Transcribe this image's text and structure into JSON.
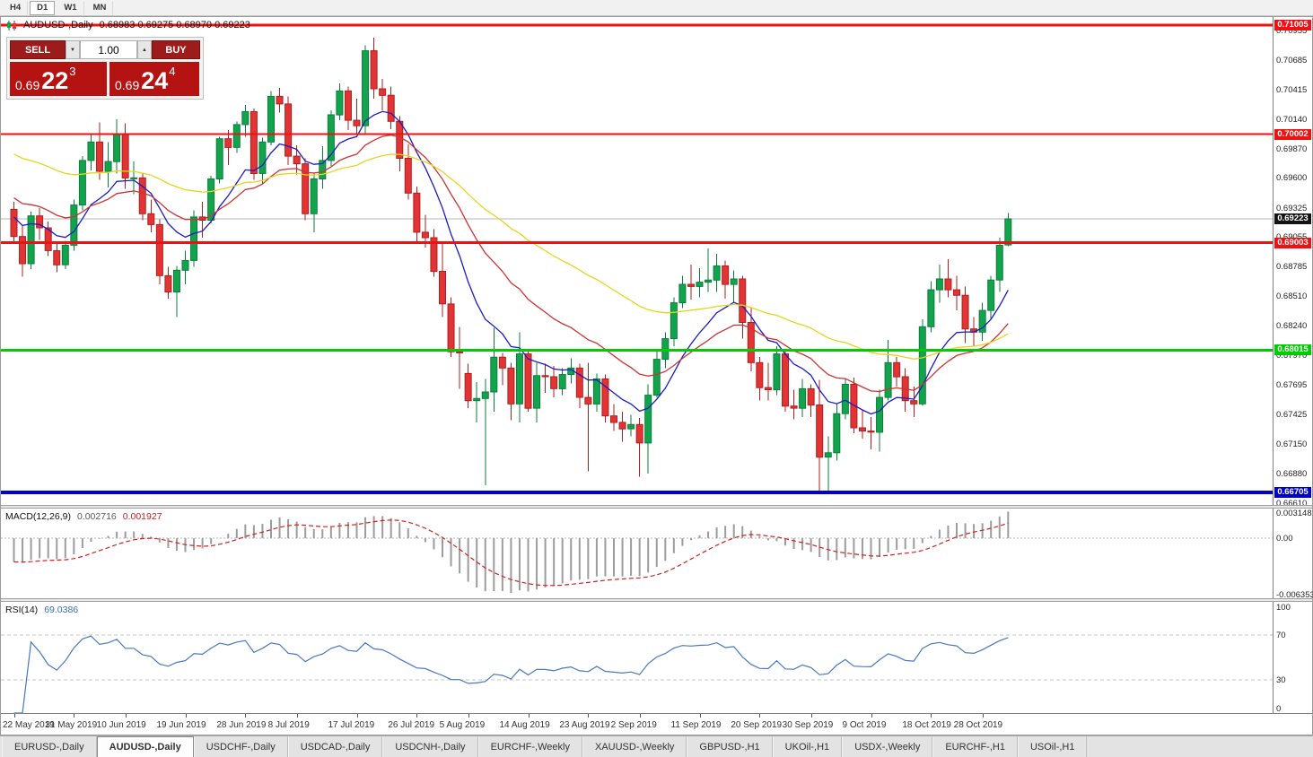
{
  "toolbar": {
    "timeframes": [
      "H4",
      "D1",
      "W1",
      "MN"
    ],
    "active": "D1"
  },
  "chart": {
    "title_symbol": "AUDUSD-,Daily",
    "title_ohlc": "0.68983 0.69275 0.68970 0.69223"
  },
  "trade_panel": {
    "sell_label": "SELL",
    "buy_label": "BUY",
    "volume": "1.00",
    "sell_price": {
      "prefix": "0.69",
      "big": "22",
      "sup": "3"
    },
    "buy_price": {
      "prefix": "0.69",
      "big": "24",
      "sup": "4"
    }
  },
  "tabs": {
    "active_index": 1,
    "items": [
      "EURUSD-,Daily",
      "AUDUSD-,Daily",
      "USDCHF-,Daily",
      "USDCAD-,Daily",
      "USDCNH-,Daily",
      "EURCHF-,Weekly",
      "XAUUSD-,Weekly",
      "GBPUSD-,H1",
      "UKOil-,H1",
      "USDX-,Weekly",
      "EURCHF-,H1",
      "USOil-,H1"
    ]
  },
  "chart_data": {
    "type": "candlestick",
    "symbol": "AUDUSD",
    "timeframe": "Daily",
    "price_max": 0.7108,
    "price_min": 0.6659,
    "y_axis_labels": [
      "0.70955",
      "0.70685",
      "0.70415",
      "0.70140",
      "0.69870",
      "0.69600",
      "0.69325",
      "0.69055",
      "0.68785",
      "0.68510",
      "0.68240",
      "0.67970",
      "0.67695",
      "0.67425",
      "0.67150",
      "0.66880",
      "0.66610"
    ],
    "x_labels": [
      {
        "idx": 0,
        "text": "22 May 2019"
      },
      {
        "idx": 7,
        "text": "31 May 2019"
      },
      {
        "idx": 13,
        "text": "10 Jun 2019"
      },
      {
        "idx": 20,
        "text": "19 Jun 2019"
      },
      {
        "idx": 27,
        "text": "28 Jun 2019"
      },
      {
        "idx": 33,
        "text": "8 Jul 2019"
      },
      {
        "idx": 40,
        "text": "17 Jul 2019"
      },
      {
        "idx": 47,
        "text": "26 Jul 2019"
      },
      {
        "idx": 53,
        "text": "5 Aug 2019"
      },
      {
        "idx": 60,
        "text": "14 Aug 2019"
      },
      {
        "idx": 67,
        "text": "23 Aug 2019"
      },
      {
        "idx": 73,
        "text": "2 Sep 2019"
      },
      {
        "idx": 80,
        "text": "11 Sep 2019"
      },
      {
        "idx": 87,
        "text": "20 Sep 2019"
      },
      {
        "idx": 93,
        "text": "30 Sep 2019"
      },
      {
        "idx": 100,
        "text": "9 Oct 2019"
      },
      {
        "idx": 107,
        "text": "18 Oct 2019"
      },
      {
        "idx": 113,
        "text": "28 Oct 2019"
      }
    ],
    "hlines": [
      {
        "price": 0.71005,
        "label": "0.71005",
        "color": "#ee1111",
        "width": 3
      },
      {
        "price": 0.70002,
        "label": "0.70002",
        "color": "#ee1111",
        "width": 2
      },
      {
        "price": 0.69003,
        "label": "0.69003",
        "color": "#ee1111",
        "width": 3
      },
      {
        "price": 0.68015,
        "label": "0.68015",
        "color": "#00cc00",
        "width": 3
      },
      {
        "price": 0.66705,
        "label": "0.66705",
        "color": "#0000cc",
        "width": 4
      }
    ],
    "current_price": {
      "value": 0.69223,
      "label": "0.69223",
      "bg": "#141414"
    },
    "candle_colors": {
      "up": "#12a44d",
      "up_stroke": "#0b7d3a",
      "down": "#e23434",
      "down_stroke": "#ae1f1f"
    },
    "overlays": [
      {
        "type": "ema",
        "period": 10,
        "seed": 0.6928,
        "color": "#1a1ac8"
      },
      {
        "type": "ema",
        "period": 22,
        "seed": 0.6945,
        "color": "#cc3333"
      },
      {
        "type": "ema",
        "period": 50,
        "seed": 0.6985,
        "color": "#e6d41c"
      }
    ],
    "candles": [
      [
        0.6931,
        0.6938,
        0.69,
        0.6906
      ],
      [
        0.6906,
        0.6916,
        0.6869,
        0.6881
      ],
      [
        0.6881,
        0.6929,
        0.6876,
        0.6925
      ],
      [
        0.6925,
        0.6932,
        0.6903,
        0.6914
      ],
      [
        0.6914,
        0.692,
        0.6888,
        0.6893
      ],
      [
        0.6893,
        0.69,
        0.6873,
        0.688
      ],
      [
        0.688,
        0.6902,
        0.6876,
        0.6898
      ],
      [
        0.6898,
        0.694,
        0.6893,
        0.6935
      ],
      [
        0.6935,
        0.698,
        0.693,
        0.6976
      ],
      [
        0.6976,
        0.7,
        0.6967,
        0.6993
      ],
      [
        0.6993,
        0.7011,
        0.6958,
        0.6966
      ],
      [
        0.6966,
        0.6993,
        0.6951,
        0.6975
      ],
      [
        0.6975,
        0.7014,
        0.6964,
        0.7
      ],
      [
        0.7,
        0.701,
        0.695,
        0.696
      ],
      [
        0.696,
        0.6975,
        0.6945,
        0.696
      ],
      [
        0.696,
        0.6965,
        0.6921,
        0.6927
      ],
      [
        0.6927,
        0.694,
        0.691,
        0.6917
      ],
      [
        0.6917,
        0.6922,
        0.6862,
        0.687
      ],
      [
        0.687,
        0.6878,
        0.6849,
        0.6855
      ],
      [
        0.6855,
        0.6879,
        0.6832,
        0.6875
      ],
      [
        0.6875,
        0.6893,
        0.6862,
        0.6884
      ],
      [
        0.6884,
        0.693,
        0.6878,
        0.6924
      ],
      [
        0.6924,
        0.6938,
        0.6905,
        0.6921
      ],
      [
        0.6921,
        0.6962,
        0.6918,
        0.6959
      ],
      [
        0.6959,
        0.6998,
        0.6955,
        0.6996
      ],
      [
        0.6996,
        0.7004,
        0.6972,
        0.6988
      ],
      [
        0.6988,
        0.7012,
        0.6983,
        0.7009
      ],
      [
        0.7009,
        0.7027,
        0.6998,
        0.7021
      ],
      [
        0.7021,
        0.7024,
        0.6958,
        0.6964
      ],
      [
        0.6964,
        0.6997,
        0.6954,
        0.6993
      ],
      [
        0.6993,
        0.704,
        0.699,
        0.7035
      ],
      [
        0.7035,
        0.7043,
        0.702,
        0.7028
      ],
      [
        0.7028,
        0.7035,
        0.6972,
        0.698
      ],
      [
        0.698,
        0.699,
        0.6963,
        0.6973
      ],
      [
        0.6973,
        0.6978,
        0.6921,
        0.6927
      ],
      [
        0.6927,
        0.6965,
        0.691,
        0.6959
      ],
      [
        0.6959,
        0.6989,
        0.695,
        0.6976
      ],
      [
        0.6976,
        0.7022,
        0.6971,
        0.7018
      ],
      [
        0.7018,
        0.7047,
        0.7013,
        0.704
      ],
      [
        0.704,
        0.7044,
        0.7004,
        0.7013
      ],
      [
        0.7013,
        0.7033,
        0.7,
        0.7008
      ],
      [
        0.7008,
        0.7082,
        0.7001,
        0.7077
      ],
      [
        0.7077,
        0.7089,
        0.7033,
        0.7042
      ],
      [
        0.7042,
        0.7051,
        0.7022,
        0.7036
      ],
      [
        0.7036,
        0.7044,
        0.7005,
        0.7012
      ],
      [
        0.7012,
        0.7017,
        0.6966,
        0.6978
      ],
      [
        0.6978,
        0.6991,
        0.694,
        0.6946
      ],
      [
        0.6946,
        0.6952,
        0.69,
        0.691
      ],
      [
        0.691,
        0.6926,
        0.6896,
        0.6905
      ],
      [
        0.6905,
        0.6913,
        0.6869,
        0.6874
      ],
      [
        0.6874,
        0.69,
        0.6832,
        0.6844
      ],
      [
        0.6844,
        0.685,
        0.6795,
        0.68
      ],
      [
        0.68,
        0.6823,
        0.6766,
        0.6799
      ],
      [
        0.678,
        0.6789,
        0.6748,
        0.6755
      ],
      [
        0.6755,
        0.6772,
        0.6735,
        0.6757
      ],
      [
        0.6757,
        0.6775,
        0.6677,
        0.6763
      ],
      [
        0.6763,
        0.6822,
        0.6745,
        0.6795
      ],
      [
        0.6795,
        0.6799,
        0.6769,
        0.6785
      ],
      [
        0.6785,
        0.679,
        0.6737,
        0.6752
      ],
      [
        0.6752,
        0.6818,
        0.6735,
        0.6798
      ],
      [
        0.6798,
        0.6801,
        0.6745,
        0.6748
      ],
      [
        0.6748,
        0.679,
        0.6735,
        0.6778
      ],
      [
        0.6778,
        0.6789,
        0.6762,
        0.6777
      ],
      [
        0.6777,
        0.6787,
        0.6758,
        0.6766
      ],
      [
        0.6766,
        0.6785,
        0.676,
        0.6779
      ],
      [
        0.6779,
        0.6794,
        0.6771,
        0.6785
      ],
      [
        0.6785,
        0.6789,
        0.6748,
        0.6758
      ],
      [
        0.6758,
        0.679,
        0.669,
        0.6752
      ],
      [
        0.6752,
        0.678,
        0.6745,
        0.6775
      ],
      [
        0.6775,
        0.6779,
        0.6735,
        0.6741
      ],
      [
        0.6741,
        0.6752,
        0.6727,
        0.6735
      ],
      [
        0.6735,
        0.6745,
        0.6717,
        0.6729
      ],
      [
        0.6729,
        0.6742,
        0.6722,
        0.6733
      ],
      [
        0.6733,
        0.6739,
        0.6685,
        0.6716
      ],
      [
        0.6716,
        0.677,
        0.6688,
        0.676
      ],
      [
        0.676,
        0.68,
        0.6758,
        0.6793
      ],
      [
        0.6793,
        0.6818,
        0.6785,
        0.6812
      ],
      [
        0.6812,
        0.685,
        0.6805,
        0.6845
      ],
      [
        0.6845,
        0.687,
        0.684,
        0.6862
      ],
      [
        0.6862,
        0.688,
        0.6848,
        0.686
      ],
      [
        0.686,
        0.6877,
        0.685,
        0.6864
      ],
      [
        0.6864,
        0.6895,
        0.6855,
        0.6866
      ],
      [
        0.6866,
        0.689,
        0.6855,
        0.6879
      ],
      [
        0.6879,
        0.6884,
        0.6849,
        0.6862
      ],
      [
        0.6862,
        0.6875,
        0.6845,
        0.6867
      ],
      [
        0.6867,
        0.687,
        0.6812,
        0.6827
      ],
      [
        0.6827,
        0.684,
        0.6782,
        0.679
      ],
      [
        0.679,
        0.6795,
        0.6755,
        0.6767
      ],
      [
        0.6767,
        0.679,
        0.6755,
        0.6765
      ],
      [
        0.6765,
        0.6805,
        0.676,
        0.6798
      ],
      [
        0.6798,
        0.68,
        0.6745,
        0.675
      ],
      [
        0.675,
        0.6765,
        0.6738,
        0.6748
      ],
      [
        0.6748,
        0.6775,
        0.674,
        0.6766
      ],
      [
        0.6766,
        0.677,
        0.674,
        0.6751
      ],
      [
        0.6751,
        0.6774,
        0.6672,
        0.6703
      ],
      [
        0.6703,
        0.6722,
        0.6671,
        0.6707
      ],
      [
        0.6707,
        0.6752,
        0.67,
        0.6743
      ],
      [
        0.6743,
        0.6775,
        0.6738,
        0.677
      ],
      [
        0.677,
        0.6776,
        0.6725,
        0.673
      ],
      [
        0.673,
        0.6746,
        0.672,
        0.6727
      ],
      [
        0.6727,
        0.674,
        0.671,
        0.6726
      ],
      [
        0.6726,
        0.6765,
        0.6708,
        0.6758
      ],
      [
        0.6758,
        0.6811,
        0.6755,
        0.679
      ],
      [
        0.679,
        0.6795,
        0.6768,
        0.6777
      ],
      [
        0.6777,
        0.6785,
        0.6745,
        0.6755
      ],
      [
        0.6755,
        0.6768,
        0.674,
        0.6752
      ],
      [
        0.6752,
        0.683,
        0.675,
        0.6823
      ],
      [
        0.6823,
        0.6865,
        0.6818,
        0.6857
      ],
      [
        0.6857,
        0.688,
        0.6845,
        0.6867
      ],
      [
        0.6867,
        0.6885,
        0.685,
        0.6857
      ],
      [
        0.6857,
        0.687,
        0.6838,
        0.6852
      ],
      [
        0.6852,
        0.686,
        0.6808,
        0.6821
      ],
      [
        0.6821,
        0.6832,
        0.6805,
        0.6818
      ],
      [
        0.6818,
        0.6845,
        0.681,
        0.6838
      ],
      [
        0.6838,
        0.687,
        0.683,
        0.6866
      ],
      [
        0.6866,
        0.6905,
        0.6855,
        0.6898
      ],
      [
        0.68983,
        0.69275,
        0.6897,
        0.69223
      ]
    ],
    "macd": {
      "label": "MACD(12,26,9)",
      "value_main": "0.002716",
      "value_signal": "0.001927",
      "fast": 12,
      "slow": 26,
      "signal": 9,
      "seed_offset_fast": 0.0012,
      "seed_offset_slow": 0.0038,
      "max": 0.003148,
      "min": -0.006353,
      "axis_labels": [
        "0.003148",
        "0.00",
        "-0.006353"
      ],
      "hist_color": "#9c9c9c",
      "signal_color": "#d42020"
    },
    "rsi": {
      "label": "RSI(14)",
      "value": "69.0386",
      "period": 14,
      "axis_labels": [
        "100",
        "70",
        "30",
        "0"
      ],
      "levels": [
        70,
        30
      ],
      "line_color": "#4878c0"
    }
  }
}
